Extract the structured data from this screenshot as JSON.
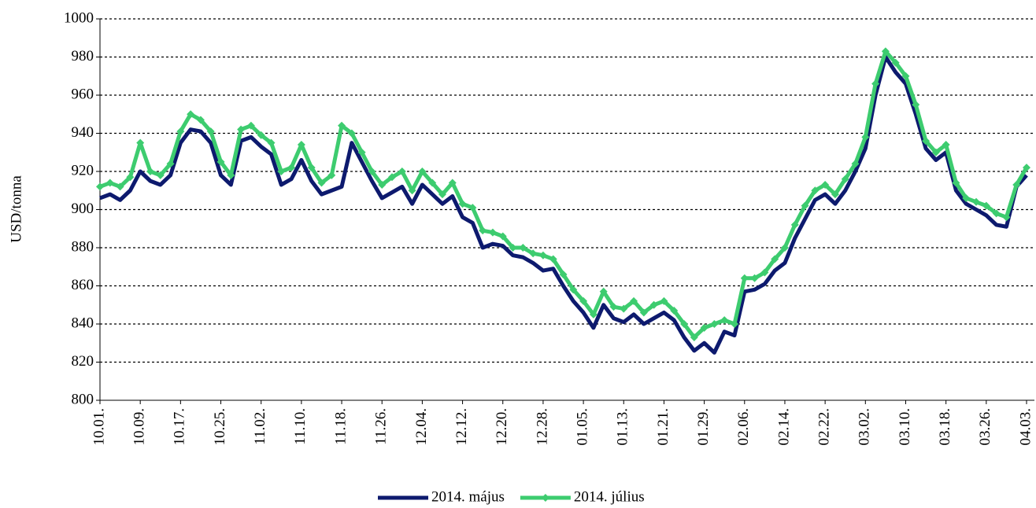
{
  "chart_data": {
    "type": "line",
    "y_label": "USD/tonna",
    "categories": [
      "10.01.",
      null,
      null,
      null,
      "10.09.",
      null,
      null,
      null,
      "10.17.",
      null,
      null,
      null,
      "10.25.",
      null,
      null,
      null,
      "11.02.",
      null,
      null,
      null,
      "11.10.",
      null,
      null,
      null,
      "11.18.",
      null,
      null,
      null,
      "11.26.",
      null,
      null,
      null,
      "12.04.",
      null,
      null,
      null,
      "12.12.",
      null,
      null,
      null,
      "12.20.",
      null,
      null,
      null,
      "12.28.",
      null,
      null,
      null,
      "01.05.",
      null,
      null,
      null,
      "01.13.",
      null,
      null,
      null,
      "01.21.",
      null,
      null,
      null,
      "01.29.",
      null,
      null,
      null,
      "02.06.",
      null,
      null,
      null,
      "02.14.",
      null,
      null,
      null,
      "02.22.",
      null,
      null,
      null,
      "03.02.",
      null,
      null,
      null,
      "03.10.",
      null,
      null,
      null,
      "03.18.",
      null,
      null,
      null,
      "03.26.",
      null,
      null,
      null,
      "04.03."
    ],
    "series": [
      {
        "name": "2014. május",
        "color": "#0d1a6e",
        "marker": false,
        "values": [
          906,
          908,
          905,
          910,
          920,
          915,
          913,
          918,
          935,
          942,
          941,
          935,
          918,
          913,
          936,
          938,
          933,
          929,
          913,
          916,
          926,
          915,
          908,
          910,
          912,
          935,
          925,
          915,
          906,
          909,
          912,
          903,
          913,
          908,
          903,
          907,
          896,
          893,
          880,
          882,
          881,
          876,
          875,
          872,
          868,
          869,
          860,
          852,
          846,
          838,
          850,
          843,
          841,
          845,
          840,
          843,
          846,
          842,
          833,
          826,
          830,
          825,
          836,
          834,
          857,
          858,
          861,
          868,
          872,
          885,
          895,
          905,
          908,
          903,
          910,
          920,
          932,
          960,
          980,
          972,
          966,
          950,
          932,
          926,
          930,
          910,
          903,
          900,
          897,
          892,
          891,
          912,
          918
        ]
      },
      {
        "name": "2014. július",
        "color": "#3dcc6f",
        "marker": true,
        "values": [
          912,
          914,
          912,
          917,
          935,
          920,
          918,
          924,
          941,
          950,
          947,
          941,
          925,
          918,
          942,
          944,
          939,
          935,
          920,
          922,
          934,
          922,
          914,
          918,
          944,
          940,
          930,
          920,
          913,
          917,
          920,
          910,
          920,
          914,
          908,
          914,
          903,
          901,
          889,
          888,
          886,
          880,
          880,
          877,
          876,
          874,
          866,
          858,
          852,
          845,
          857,
          849,
          848,
          852,
          846,
          850,
          852,
          847,
          840,
          833,
          838,
          840,
          842,
          840,
          864,
          864,
          867,
          874,
          880,
          892,
          902,
          910,
          913,
          908,
          916,
          924,
          938,
          966,
          983,
          977,
          970,
          955,
          936,
          930,
          934,
          914,
          906,
          904,
          902,
          898,
          896,
          913,
          922
        ]
      }
    ],
    "ylim": [
      800,
      1000
    ],
    "yticks": [
      800,
      820,
      840,
      860,
      880,
      900,
      920,
      940,
      960,
      980,
      1000
    ],
    "grid": true,
    "legend": "bottom"
  }
}
